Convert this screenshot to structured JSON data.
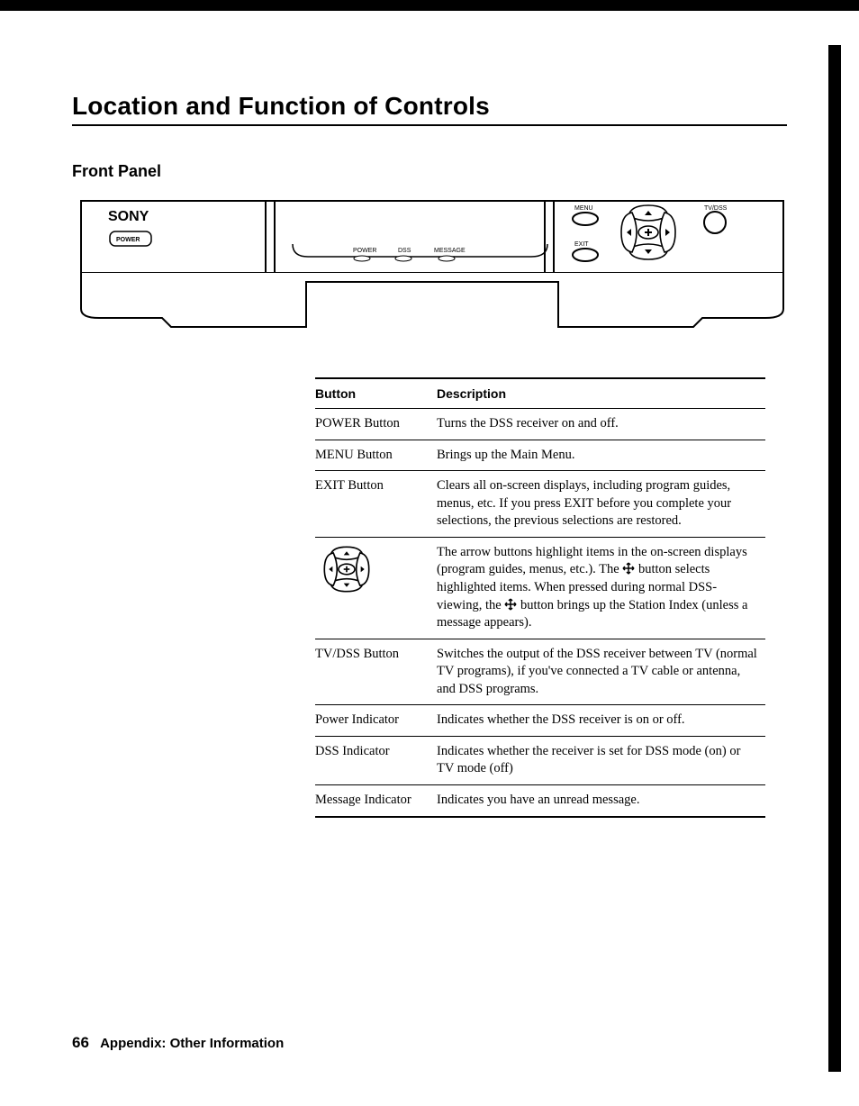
{
  "title": "Location and Function of Controls",
  "section": "Front Panel",
  "diagram": {
    "brand": "SONY",
    "power_btn": "POWER",
    "ind_power": "POWER",
    "ind_dss": "DSS",
    "ind_message": "MESSAGE",
    "lbl_menu": "MENU",
    "lbl_exit": "EXIT",
    "lbl_tvdss": "TV/DSS",
    "colors": {
      "stroke": "#000000",
      "fill": "#ffffff"
    }
  },
  "table": {
    "head_button": "Button",
    "head_desc": "Description",
    "rows": [
      {
        "button": "POWER Button",
        "desc": "Turns the DSS receiver on and off."
      },
      {
        "button": "MENU Button",
        "desc": "Brings up the Main Menu."
      },
      {
        "button": "EXIT Button",
        "desc": "Clears all on-screen displays, including program guides, menus, etc. If you press EXIT before you complete your selections, the previous selections are restored."
      },
      {
        "button": "__ARROWPAD__",
        "desc_pre": "The arrow buttons highlight items in the on-screen displays (program guides, menus, etc.). The ",
        "desc_mid": " button selects highlighted items. When pressed during normal DSS-viewing, the ",
        "desc_post": " button brings up the Station Index (unless a message appears)."
      },
      {
        "button": "TV/DSS Button",
        "desc": "Switches the output of the DSS receiver between TV (normal TV programs), if you've connected a TV cable or antenna, and DSS programs."
      },
      {
        "button": "Power Indicator",
        "desc": "Indicates whether the DSS receiver is on or off."
      },
      {
        "button": "DSS Indicator",
        "desc": "Indicates whether the receiver is set for DSS mode (on) or TV mode (off)"
      },
      {
        "button": "Message Indicator",
        "desc": "Indicates you have an unread message."
      }
    ]
  },
  "footer": {
    "page": "66",
    "text": "Appendix: Other Information"
  }
}
